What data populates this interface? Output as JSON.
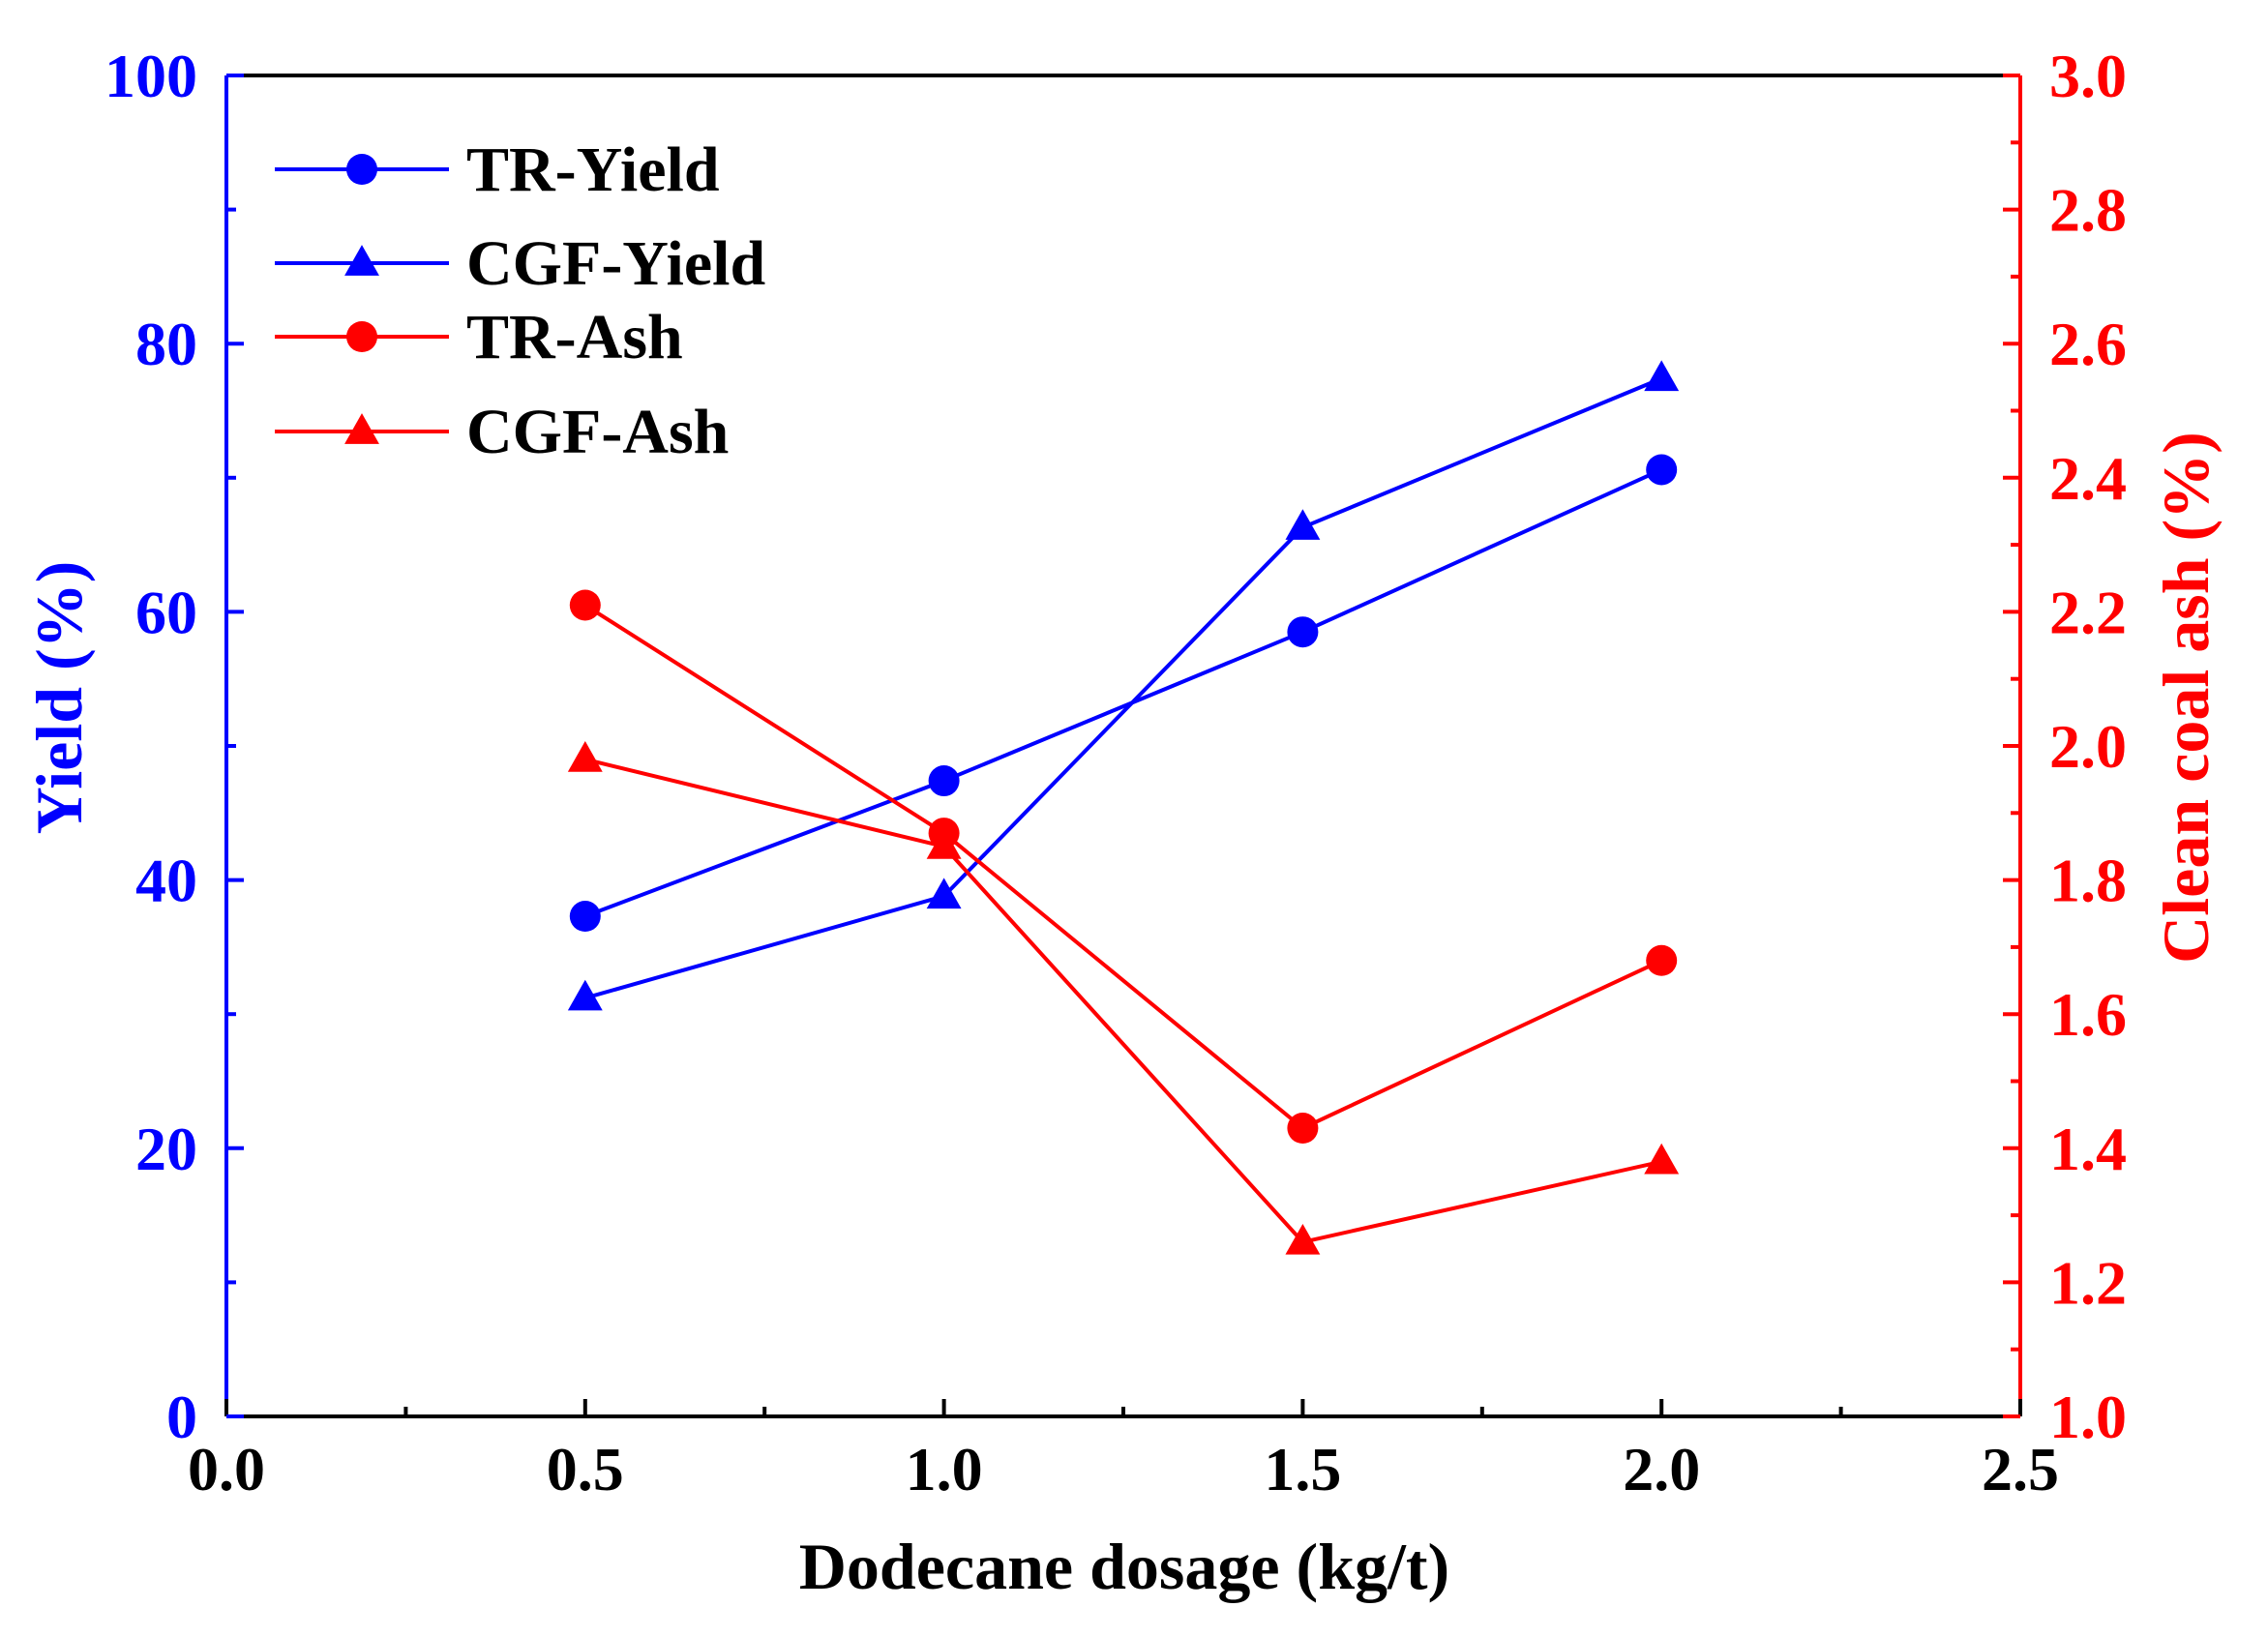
{
  "chart_data": {
    "type": "line",
    "title": "",
    "xlabel": "Dodecane dosage (kg/t)",
    "ylabel_left": "Yield (%)",
    "ylabel_right": "Clean coal ash (%)",
    "xlim": [
      0.0,
      2.5
    ],
    "ylim_left": [
      0,
      100
    ],
    "ylim_right": [
      1.0,
      3.0
    ],
    "x_ticks": [
      "0.0",
      "0.5",
      "1.0",
      "1.5",
      "2.0",
      "2.5"
    ],
    "y_left_ticks": [
      "0",
      "20",
      "40",
      "60",
      "80",
      "100"
    ],
    "y_right_ticks": [
      "1.0",
      "1.2",
      "1.4",
      "1.6",
      "1.8",
      "2.0",
      "2.2",
      "2.4",
      "2.6",
      "2.8",
      "3.0"
    ],
    "grid": false,
    "legend_position": "top-left",
    "series": [
      {
        "name": "TR-Yield",
        "axis": "left",
        "marker": "circle",
        "color": "#0000FF",
        "x": [
          0.5,
          1.0,
          1.5,
          2.0
        ],
        "values": [
          37.3,
          47.4,
          58.5,
          70.6
        ]
      },
      {
        "name": "CGF-Yield",
        "axis": "left",
        "marker": "triangle",
        "color": "#0000FF",
        "x": [
          0.5,
          1.0,
          1.5,
          2.0
        ],
        "values": [
          31.2,
          38.8,
          66.3,
          77.4
        ]
      },
      {
        "name": "TR-Ash",
        "axis": "right",
        "marker": "circle",
        "color": "#FF0000",
        "x": [
          0.5,
          1.0,
          1.5,
          2.0
        ],
        "values": [
          2.21,
          1.87,
          1.43,
          1.68
        ]
      },
      {
        "name": "CGF-Ash",
        "axis": "right",
        "marker": "triangle",
        "color": "#FF0000",
        "x": [
          0.5,
          1.0,
          1.5,
          2.0
        ],
        "values": [
          1.98,
          1.85,
          1.26,
          1.38
        ]
      }
    ]
  }
}
